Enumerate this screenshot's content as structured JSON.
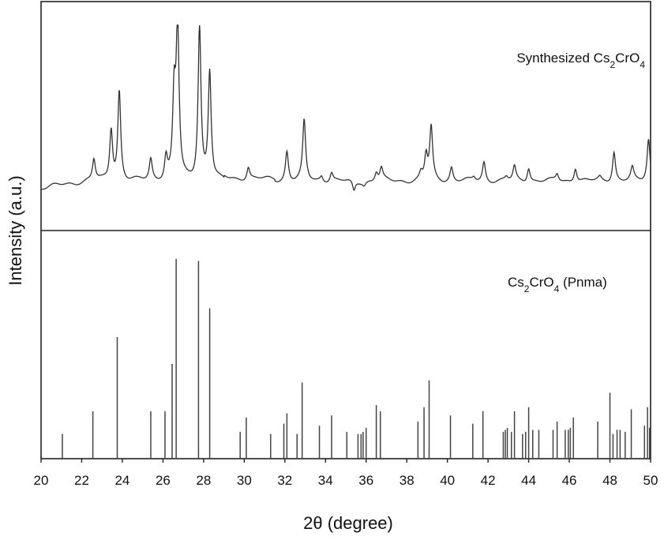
{
  "chart_data": {
    "type": "line",
    "xlabel": "2θ (degree)",
    "ylabel": "Intensity (a.u.)",
    "xlim": [
      20,
      50
    ],
    "x_ticks": [
      "20",
      "22",
      "24",
      "26",
      "28",
      "30",
      "32",
      "34",
      "36",
      "38",
      "40",
      "42",
      "44",
      "46",
      "48",
      "50"
    ],
    "grid": false,
    "panels": [
      {
        "name": "Synthesized Cs2CrO4",
        "legend_parts": {
          "a": "Synthesized Cs",
          "b": "2",
          "c": "CrO",
          "d": "4"
        },
        "type": "line",
        "baseline": 0.12,
        "peaks": [
          [
            22.6,
            0.24
          ],
          [
            23.45,
            0.41
          ],
          [
            23.85,
            0.63
          ],
          [
            25.4,
            0.24
          ],
          [
            26.15,
            0.25
          ],
          [
            26.55,
            0.58
          ],
          [
            26.72,
            0.99
          ],
          [
            27.8,
            1.0
          ],
          [
            28.3,
            0.74
          ],
          [
            30.2,
            0.19
          ],
          [
            32.1,
            0.29
          ],
          [
            32.95,
            0.46
          ],
          [
            33.8,
            0.15
          ],
          [
            34.3,
            0.17
          ],
          [
            35.4,
            0.06
          ],
          [
            35.9,
            0.1
          ],
          [
            36.5,
            0.17
          ],
          [
            36.75,
            0.19
          ],
          [
            38.7,
            0.16
          ],
          [
            38.95,
            0.26
          ],
          [
            39.2,
            0.42
          ],
          [
            40.2,
            0.2
          ],
          [
            41.3,
            0.14
          ],
          [
            41.8,
            0.23
          ],
          [
            42.9,
            0.14
          ],
          [
            43.3,
            0.2
          ],
          [
            44.0,
            0.2
          ],
          [
            45.4,
            0.16
          ],
          [
            46.3,
            0.2
          ],
          [
            47.5,
            0.14
          ],
          [
            48.2,
            0.29
          ],
          [
            49.1,
            0.19
          ],
          [
            49.9,
            0.36
          ]
        ]
      },
      {
        "name": "Cs2CrO4 (Pnma)",
        "legend_parts": {
          "a": "Cs",
          "b": "2",
          "c": "CrO",
          "d": "4 (Pnma)"
        },
        "type": "stick",
        "sticks": [
          [
            21.05,
            0.12
          ],
          [
            22.55,
            0.23
          ],
          [
            23.75,
            0.59
          ],
          [
            25.4,
            0.23
          ],
          [
            26.1,
            0.23
          ],
          [
            26.45,
            0.46
          ],
          [
            26.65,
            0.97
          ],
          [
            27.75,
            0.96
          ],
          [
            28.3,
            0.73
          ],
          [
            29.8,
            0.13
          ],
          [
            30.1,
            0.2
          ],
          [
            31.3,
            0.12
          ],
          [
            31.95,
            0.17
          ],
          [
            32.1,
            0.22
          ],
          [
            32.6,
            0.12
          ],
          [
            32.85,
            0.37
          ],
          [
            33.7,
            0.16
          ],
          [
            34.3,
            0.21
          ],
          [
            35.05,
            0.13
          ],
          [
            35.6,
            0.12
          ],
          [
            35.75,
            0.12
          ],
          [
            35.85,
            0.13
          ],
          [
            36.0,
            0.15
          ],
          [
            36.5,
            0.26
          ],
          [
            36.7,
            0.23
          ],
          [
            38.55,
            0.18
          ],
          [
            38.85,
            0.25
          ],
          [
            39.1,
            0.38
          ],
          [
            40.15,
            0.21
          ],
          [
            41.25,
            0.17
          ],
          [
            41.75,
            0.23
          ],
          [
            42.75,
            0.13
          ],
          [
            42.85,
            0.14
          ],
          [
            42.95,
            0.15
          ],
          [
            43.15,
            0.13
          ],
          [
            43.3,
            0.23
          ],
          [
            43.7,
            0.12
          ],
          [
            43.85,
            0.13
          ],
          [
            44.0,
            0.25
          ],
          [
            44.2,
            0.14
          ],
          [
            44.5,
            0.14
          ],
          [
            45.2,
            0.14
          ],
          [
            45.4,
            0.18
          ],
          [
            45.8,
            0.14
          ],
          [
            45.95,
            0.14
          ],
          [
            46.05,
            0.15
          ],
          [
            46.2,
            0.2
          ],
          [
            47.4,
            0.18
          ],
          [
            48.0,
            0.32
          ],
          [
            48.15,
            0.12
          ],
          [
            48.35,
            0.14
          ],
          [
            48.5,
            0.14
          ],
          [
            48.75,
            0.13
          ],
          [
            49.05,
            0.24
          ],
          [
            49.7,
            0.16
          ],
          [
            49.85,
            0.25
          ],
          [
            49.95,
            0.15
          ]
        ]
      }
    ]
  }
}
